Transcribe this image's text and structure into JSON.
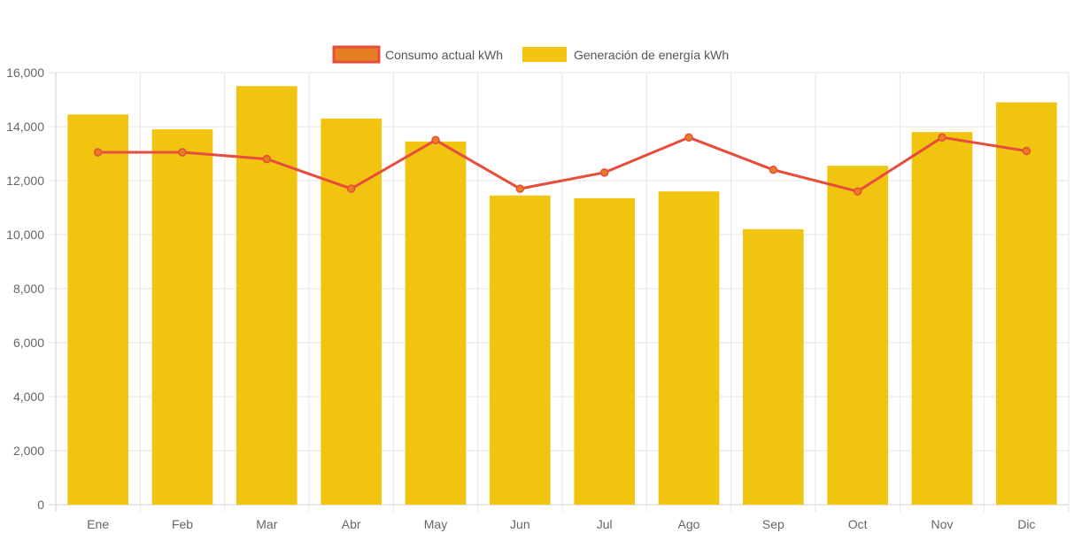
{
  "chart_data": {
    "type": "bar",
    "categories": [
      "Ene",
      "Feb",
      "Mar",
      "Abr",
      "May",
      "Jun",
      "Jul",
      "Ago",
      "Sep",
      "Oct",
      "Nov",
      "Dic"
    ],
    "series": [
      {
        "name": "Consumo actual kWh",
        "type": "line",
        "values": [
          13050,
          13050,
          12800,
          11700,
          13500,
          11700,
          12300,
          13600,
          12400,
          11600,
          13600,
          13100
        ],
        "color": "#e74c3c",
        "fill": "#e67e22"
      },
      {
        "name": "Generación de energía kWh",
        "type": "bar",
        "values": [
          14450,
          13900,
          15500,
          14300,
          13450,
          11450,
          11350,
          11600,
          10200,
          12550,
          13800,
          14900
        ],
        "color": "#f1c40f"
      }
    ],
    "ylim": [
      0,
      16000
    ],
    "yticks": [
      "0",
      "2,000",
      "4,000",
      "6,000",
      "8,000",
      "10,000",
      "12,000",
      "14,000",
      "16,000"
    ],
    "grid": true,
    "legend": "top-center"
  }
}
